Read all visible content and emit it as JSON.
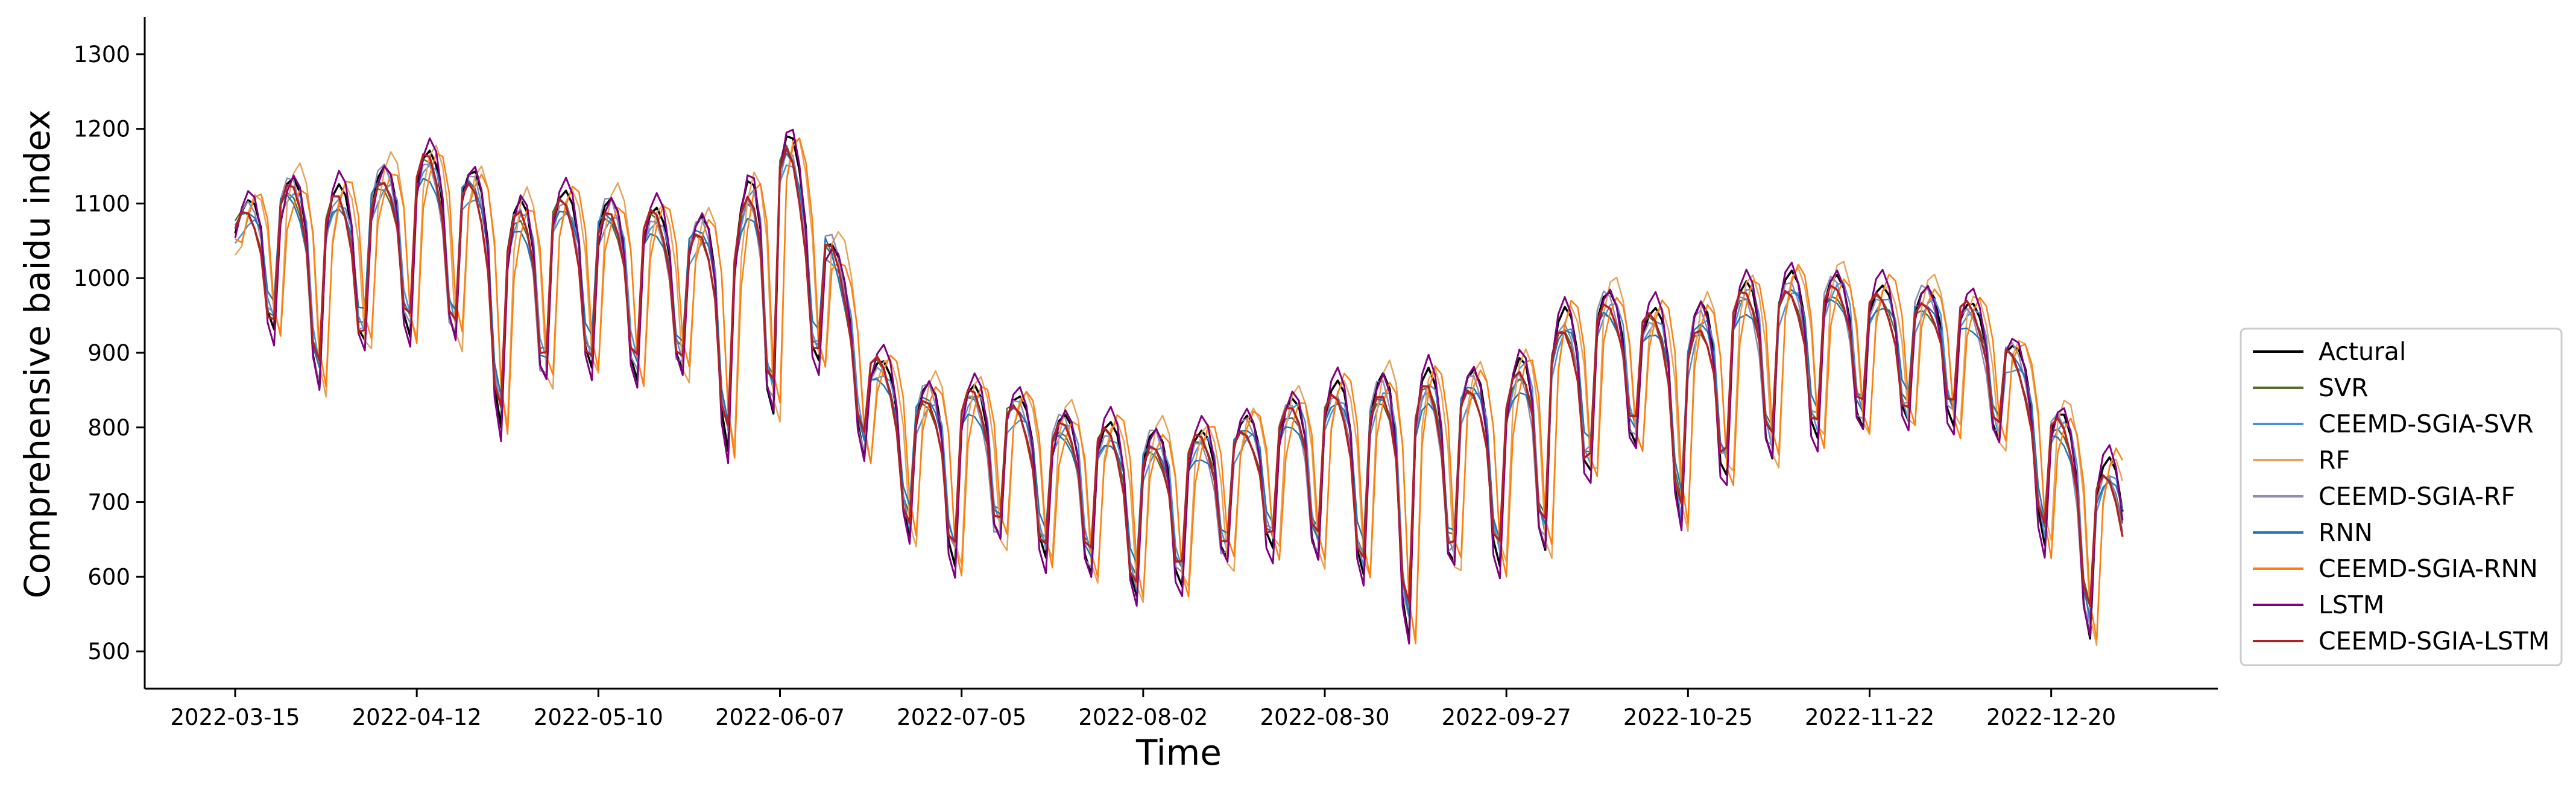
{
  "chart_data": {
    "type": "line",
    "title": "",
    "xlabel": "Time",
    "ylabel": "Comprehensive baidu index",
    "x_tick_labels": [
      "2022-03-15",
      "2022-04-12",
      "2022-05-10",
      "2022-06-07",
      "2022-07-05",
      "2022-08-02",
      "2022-08-30",
      "2022-09-27",
      "2022-10-25",
      "2022-11-22",
      "2022-12-20"
    ],
    "y_ticks": [
      500,
      600,
      700,
      800,
      900,
      1000,
      1100,
      1200,
      1300
    ],
    "ylim": [
      450,
      1350
    ],
    "x_start": "2022-03-15",
    "x_end": "2022-12-31",
    "grid": false,
    "legend_position": "right",
    "actual_weekly": {
      "note_free": true,
      "week_start": [
        "2022-03-15",
        "2022-03-22",
        "2022-03-29",
        "2022-04-05",
        "2022-04-12",
        "2022-04-19",
        "2022-04-26",
        "2022-05-03",
        "2022-05-10",
        "2022-05-17",
        "2022-05-24",
        "2022-05-31",
        "2022-06-07",
        "2022-06-14",
        "2022-06-21",
        "2022-06-28",
        "2022-07-05",
        "2022-07-12",
        "2022-07-19",
        "2022-07-26",
        "2022-08-02",
        "2022-08-09",
        "2022-08-16",
        "2022-08-23",
        "2022-08-30",
        "2022-09-06",
        "2022-09-13",
        "2022-09-20",
        "2022-09-27",
        "2022-10-04",
        "2022-10-11",
        "2022-10-18",
        "2022-10-25",
        "2022-11-01",
        "2022-11-08",
        "2022-11-15",
        "2022-11-22",
        "2022-11-29",
        "2022-12-06",
        "2022-12-13",
        "2022-12-20",
        "2022-12-27"
      ],
      "high": [
        1090,
        1140,
        1120,
        1140,
        1175,
        1160,
        1100,
        1120,
        1110,
        1100,
        1080,
        1090,
        1230,
        1080,
        900,
        860,
        860,
        850,
        820,
        810,
        800,
        790,
        810,
        830,
        860,
        870,
        880,
        880,
        870,
        950,
        990,
        960,
        960,
        990,
        1010,
        1010,
        990,
        990,
        980,
        930,
        840,
        760
      ],
      "low": [
        940,
        930,
        840,
        930,
        920,
        920,
        780,
        880,
        880,
        860,
        880,
        750,
        830,
        900,
        740,
        640,
        610,
        660,
        620,
        600,
        570,
        590,
        630,
        640,
        620,
        600,
        500,
        640,
        610,
        640,
        760,
        780,
        650,
        750,
        760,
        790,
        800,
        810,
        800,
        780,
        620,
        500
      ]
    },
    "series": [
      {
        "name": "Actural",
        "color": "#000000"
      },
      {
        "name": "SVR",
        "color": "#556b2f"
      },
      {
        "name": "CEEMD-SGIA-SVR",
        "color": "#4a90d9"
      },
      {
        "name": "RF",
        "color": "#e6a35a"
      },
      {
        "name": "CEEMD-SGIA-RF",
        "color": "#8c8cb4"
      },
      {
        "name": "RNN",
        "color": "#1f77b4"
      },
      {
        "name": "CEEMD-SGIA-RNN",
        "color": "#ff7f0e"
      },
      {
        "name": "LSTM",
        "color": "#800080"
      },
      {
        "name": "CEEMD-SGIA-LSTM",
        "color": "#b22222"
      }
    ]
  }
}
